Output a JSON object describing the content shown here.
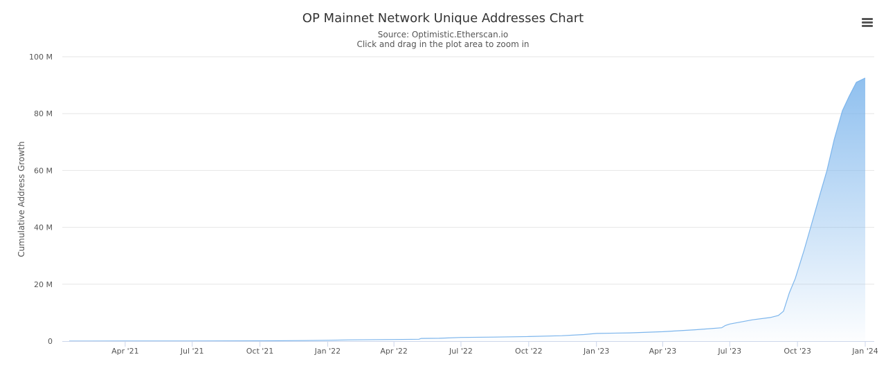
{
  "chart_data": {
    "type": "area",
    "title": "OP Mainnet Network Unique Addresses Chart",
    "subtitle": "Source: Optimistic.Etherscan.io",
    "instruction": "Click and drag in the plot area to zoom in",
    "ylabel": "Cumulative Address Growth",
    "xlabel": "",
    "ylim": [
      0,
      100000000
    ],
    "y_ticks": [
      {
        "value": 0,
        "label": "0"
      },
      {
        "value": 20000000,
        "label": "20 M"
      },
      {
        "value": 40000000,
        "label": "40 M"
      },
      {
        "value": 60000000,
        "label": "60 M"
      },
      {
        "value": 80000000,
        "label": "80 M"
      },
      {
        "value": 100000000,
        "label": "100 M"
      }
    ],
    "xlim": [
      "2021-01-15",
      "2024-01-01"
    ],
    "x_ticks": [
      {
        "date": "2021-04-01",
        "label": "Apr '21"
      },
      {
        "date": "2021-07-01",
        "label": "Jul '21"
      },
      {
        "date": "2021-10-01",
        "label": "Oct '21"
      },
      {
        "date": "2022-01-01",
        "label": "Jan '22"
      },
      {
        "date": "2022-04-01",
        "label": "Apr '22"
      },
      {
        "date": "2022-07-01",
        "label": "Jul '22"
      },
      {
        "date": "2022-10-01",
        "label": "Oct '22"
      },
      {
        "date": "2023-01-01",
        "label": "Jan '23"
      },
      {
        "date": "2023-04-01",
        "label": "Apr '23"
      },
      {
        "date": "2023-07-01",
        "label": "Jul '23"
      },
      {
        "date": "2023-10-01",
        "label": "Oct '23"
      },
      {
        "date": "2024-01-01",
        "label": "Jan '24"
      }
    ],
    "grid": true,
    "legend": "none",
    "line_color": "#7cb5ec",
    "series": [
      {
        "points": [
          [
            "2021-01-15",
            0
          ],
          [
            "2021-04-01",
            20000
          ],
          [
            "2021-07-01",
            50000
          ],
          [
            "2021-10-01",
            100000
          ],
          [
            "2021-12-01",
            200000
          ],
          [
            "2022-01-01",
            300000
          ],
          [
            "2022-02-01",
            450000
          ],
          [
            "2022-04-01",
            550000
          ],
          [
            "2022-05-05",
            650000
          ],
          [
            "2022-05-08",
            950000
          ],
          [
            "2022-06-01",
            1000000
          ],
          [
            "2022-07-01",
            1300000
          ],
          [
            "2022-08-15",
            1400000
          ],
          [
            "2022-10-01",
            1600000
          ],
          [
            "2022-11-15",
            1900000
          ],
          [
            "2022-12-15",
            2300000
          ],
          [
            "2023-01-01",
            2700000
          ],
          [
            "2023-02-15",
            2900000
          ],
          [
            "2023-04-01",
            3300000
          ],
          [
            "2023-05-15",
            4000000
          ],
          [
            "2023-06-20",
            4700000
          ],
          [
            "2023-06-25",
            5500000
          ],
          [
            "2023-07-01",
            6000000
          ],
          [
            "2023-08-01",
            7500000
          ],
          [
            "2023-08-25",
            8300000
          ],
          [
            "2023-09-05",
            9000000
          ],
          [
            "2023-09-12",
            10500000
          ],
          [
            "2023-09-20",
            17000000
          ],
          [
            "2023-09-28",
            22000000
          ],
          [
            "2023-10-10",
            32000000
          ],
          [
            "2023-10-20",
            41000000
          ],
          [
            "2023-11-01",
            52000000
          ],
          [
            "2023-11-10",
            60000000
          ],
          [
            "2023-11-20",
            71000000
          ],
          [
            "2023-12-01",
            81000000
          ],
          [
            "2023-12-10",
            86000000
          ],
          [
            "2023-12-20",
            91000000
          ],
          [
            "2024-01-01",
            92500000
          ]
        ]
      }
    ]
  }
}
